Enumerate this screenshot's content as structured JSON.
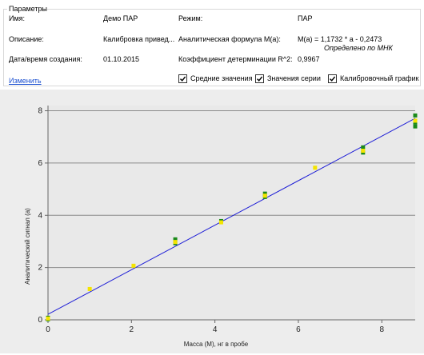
{
  "params": {
    "title": "Параметры",
    "name_label": "Имя:",
    "name_value": "Демо ПАР",
    "mode_label": "Режим:",
    "mode_value": "ПАР",
    "description_label": "Описание:",
    "description_value": "Калибровка привед...",
    "formula_label": "Аналитическая формула M(a):",
    "formula_value": "M(a) = 1,1732 * a - 0,2473",
    "formula_note": "Определено по МНК",
    "date_label": "Дата/время создания:",
    "date_value": "01.10.2015",
    "r2_label": "Коэффициент детерминации R^2:",
    "r2_value": "0,9967",
    "edit_link": "Изменить"
  },
  "options": [
    {
      "label": "Средние значения",
      "checked": true
    },
    {
      "label": "Значения серии",
      "checked": true
    },
    {
      "label": "Калибровочный график",
      "checked": true
    }
  ],
  "colors": {
    "panel_bg": "#ffffff",
    "chart_bg": "#ededed",
    "plot_bg": "#e9e9e9",
    "line": "#1f1fd6",
    "series_mark": "#1a8a1a",
    "mean_mark": "#f4e400",
    "link": "#1a4fd0"
  },
  "chart_data": {
    "type": "scatter",
    "xlabel": "Масса (M), нг в пробе",
    "ylabel": "Аналитический сигнал (a)",
    "xlim": [
      0,
      8.8
    ],
    "ylim": [
      0,
      8.2
    ],
    "xticks": [
      "0",
      "2",
      "4",
      "6",
      "8"
    ],
    "yticks": [
      "0",
      "2",
      "4",
      "6",
      "8"
    ],
    "grid": "horizontal",
    "fit_line": {
      "slope": 0.8524,
      "intercept": 0.2108,
      "x": [
        0,
        8.8
      ]
    },
    "series_points": [
      {
        "x": 0,
        "y": 0.02
      },
      {
        "x": 0,
        "y": 0.08
      },
      {
        "x": 3.05,
        "y": 2.93
      },
      {
        "x": 3.05,
        "y": 3.08
      },
      {
        "x": 4.15,
        "y": 3.78
      },
      {
        "x": 5.2,
        "y": 4.7
      },
      {
        "x": 5.2,
        "y": 4.83
      },
      {
        "x": 7.55,
        "y": 6.4
      },
      {
        "x": 7.55,
        "y": 6.6
      },
      {
        "x": 8.8,
        "y": 7.4
      },
      {
        "x": 8.8,
        "y": 7.55
      },
      {
        "x": 8.8,
        "y": 7.82
      }
    ],
    "mean_points": [
      {
        "x": 0,
        "y": 0.05
      },
      {
        "x": 1.0,
        "y": 1.18
      },
      {
        "x": 2.05,
        "y": 2.07
      },
      {
        "x": 3.05,
        "y": 2.98
      },
      {
        "x": 4.15,
        "y": 3.73
      },
      {
        "x": 5.2,
        "y": 4.75
      },
      {
        "x": 6.4,
        "y": 5.82
      },
      {
        "x": 7.55,
        "y": 6.47
      },
      {
        "x": 8.8,
        "y": 7.62
      }
    ]
  }
}
